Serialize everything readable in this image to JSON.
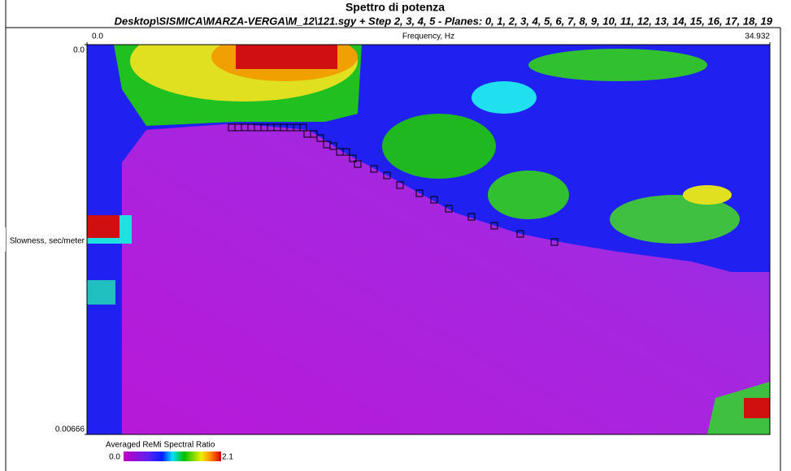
{
  "chart_data": {
    "type": "scatter",
    "title": "Spettro di potenza",
    "subtitle": "Desktop\\SISMICA\\MARZA-VERGA\\M_12\\121.sgy + Step 2, 3, 4, 5 - Planes: 0, 1, 2, 3, 4, 5, 6, 7, 8, 9, 10, 11, 12, 13, 14, 15, 16, 17, 18, 19",
    "x_label": "Frequency, Hz",
    "y_label": "Slowness, sec/meter",
    "xlim": [
      0,
      34.932
    ],
    "xticks": [
      {
        "value": 0,
        "label": "0.0"
      },
      34.932
    ],
    "ylim": [
      0,
      0.00666
    ],
    "y_inverted": true,
    "yticks": [
      {
        "value": 0,
        "label": "0.0"
      },
      0.00666
    ],
    "colorbar_label": "Averaged ReMi Spectral Ratio",
    "colorbar_lim": [
      0,
      2.1
    ],
    "colorbar_ticks": [
      {
        "value": 0,
        "label": "0.0"
      },
      2.1
    ],
    "series": [
      {
        "name": "picks",
        "color": "#000000",
        "x": [
          7.402,
          7.735,
          8.068,
          8.4,
          8.733,
          9.066,
          9.398,
          9.731,
          10.064,
          10.397,
          10.729,
          11.062,
          11.27,
          11.602,
          11.935,
          12.268,
          12.601,
          12.933,
          13.266,
          13.599,
          13.848,
          14.68,
          15.345,
          16.011,
          17.009,
          17.757,
          18.506,
          19.67,
          20.835,
          22.165,
          23.912
        ],
        "values": [
          0.001415,
          0.001415,
          0.001415,
          0.001415,
          0.001415,
          0.001415,
          0.001415,
          0.001415,
          0.001415,
          0.001415,
          0.001415,
          0.001415,
          0.001526,
          0.001526,
          0.001596,
          0.001707,
          0.001734,
          0.001832,
          0.001832,
          0.001943,
          0.00204,
          0.002123,
          0.002234,
          0.0024,
          0.002539,
          0.00265,
          0.002803,
          0.002942,
          0.003094,
          0.003233,
          0.003372
        ]
      }
    ]
  }
}
